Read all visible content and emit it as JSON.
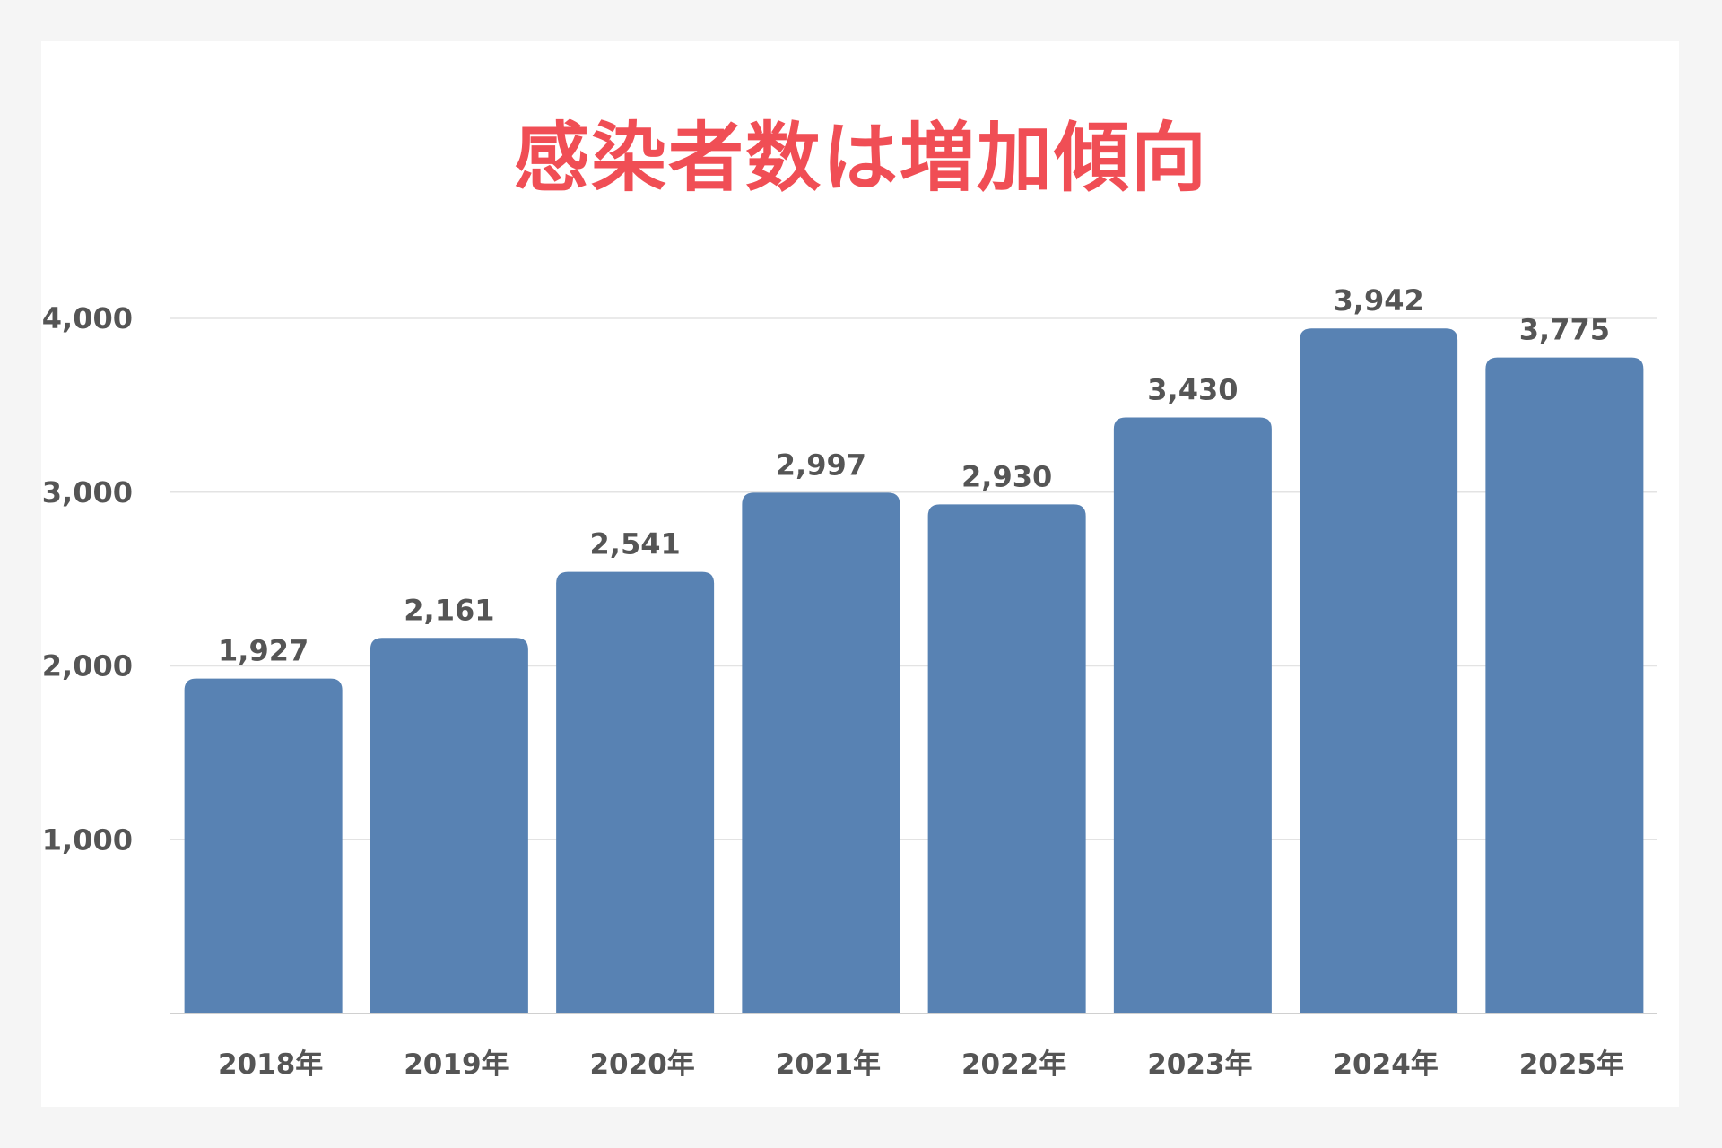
{
  "chart_data": {
    "type": "bar",
    "title": "感染者数は増加傾向",
    "categories": [
      "2018年",
      "2019年",
      "2020年",
      "2021年",
      "2022年",
      "2023年",
      "2024年",
      "2025年"
    ],
    "values": [
      1927,
      2161,
      2541,
      2997,
      2930,
      3430,
      3942,
      3775
    ],
    "data_labels": [
      "1,927",
      "2,161",
      "2,541",
      "2,997",
      "2,930",
      "3,430",
      "3,942",
      "3,775"
    ],
    "yticks": [
      1000,
      2000,
      3000,
      4000
    ],
    "ytick_labels": [
      "1,000",
      "2,000",
      "3,000",
      "4,000"
    ],
    "ylim": [
      0,
      4000
    ],
    "xlabel": "",
    "ylabel": "",
    "grid": true,
    "legend": "none",
    "colors": {
      "bar": "#5882b3",
      "title": "#f04e55",
      "text": "#555555",
      "grid": "#e3e3e3",
      "axis": "#d0d0d0",
      "background": "#f5f5f5",
      "card": "#ffffff"
    }
  }
}
